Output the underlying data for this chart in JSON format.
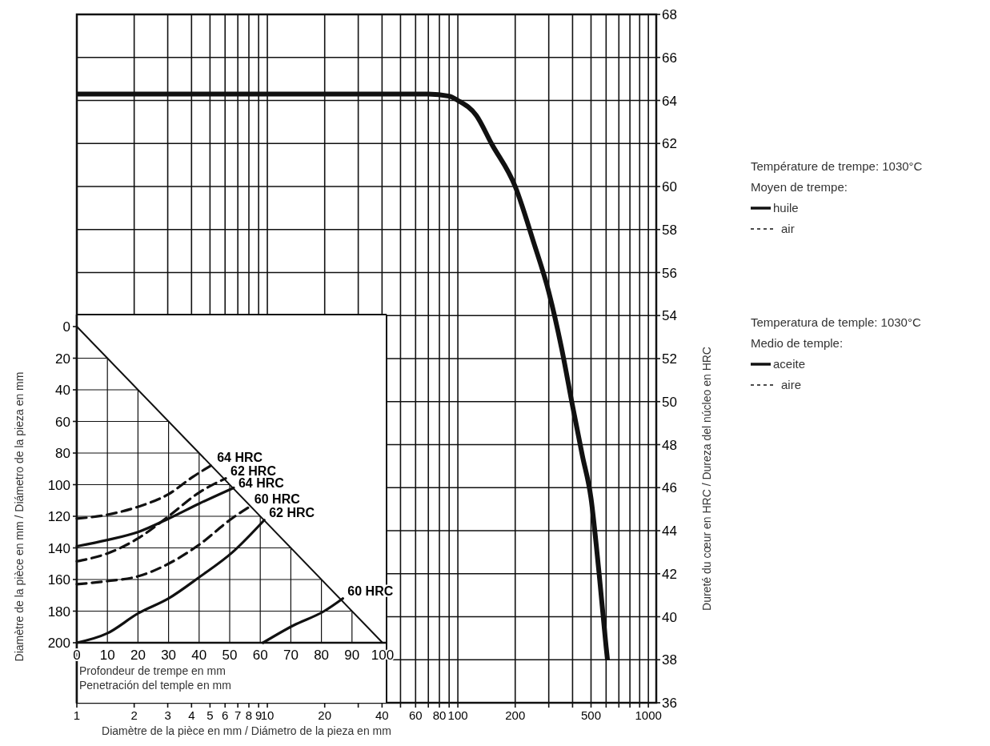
{
  "chart_data": [
    {
      "type": "line",
      "xlabel": "Diamètre de la pièce en mm / Diámetro de la pieza en mm",
      "ylabel": "Dureté du cœur en HRC / Dureza del núcleo en HRC",
      "log": "x",
      "grid": true,
      "xlim": [
        1,
        1100
      ],
      "xticks": [
        1,
        2,
        3,
        4,
        5,
        6,
        7,
        8,
        9,
        10,
        20,
        {
          "value": 30,
          "label": null
        },
        40,
        {
          "value": 50,
          "label": null
        },
        60,
        {
          "value": 70,
          "label": null
        },
        80,
        {
          "value": 90,
          "label": null
        },
        100,
        200,
        {
          "value": 300,
          "label": null
        },
        {
          "value": 400,
          "label": null
        },
        500,
        {
          "value": 600,
          "label": null
        },
        {
          "value": 700,
          "label": null
        },
        {
          "value": 800,
          "label": null
        },
        {
          "value": 900,
          "label": null
        },
        1000
      ],
      "ylim": [
        36,
        68
      ],
      "yticks": [
        36,
        38,
        40,
        42,
        44,
        46,
        48,
        50,
        52,
        54,
        56,
        58,
        60,
        62,
        64,
        66,
        68
      ],
      "series": [
        {
          "color": "#111111",
          "x": [
            1,
            70,
            90,
            100,
            125,
            150,
            200,
            250,
            300,
            350,
            400,
            450,
            500,
            550,
            600,
            610
          ],
          "values": [
            64.3,
            64.3,
            64.2,
            64.0,
            63.3,
            62.0,
            60.0,
            57.4,
            55.1,
            52.5,
            49.8,
            47.5,
            45.5,
            42.1,
            38.6,
            38
          ]
        }
      ]
    },
    {
      "type": "line",
      "xlabel": "Profondeur de trempe en mm\nPenetración del temple en mm",
      "ylabel": "Diamètre de la pièce en mm / Diámetro de la pieza en mm",
      "grid": true,
      "xlim": [
        0,
        100
      ],
      "xticks": [
        0,
        10,
        20,
        30,
        40,
        50,
        60,
        70,
        80,
        90,
        100
      ],
      "ylim": [
        200,
        0
      ],
      "yticks": [
        0,
        20,
        40,
        60,
        80,
        100,
        120,
        140,
        160,
        180,
        200
      ],
      "annotations": [
        "Température de trempe: 1030°C",
        "Moyen de trempe:",
        "huile",
        "air",
        "Temperatura de temple: 1030°C",
        "Medio de temple:",
        "aceite",
        "aire"
      ],
      "series": [
        {
          "color": "#111111",
          "line_style": "solid",
          "x": [
            0,
            100
          ],
          "values": [
            0,
            200
          ]
        },
        {
          "name": "64 HRC",
          "color": "#111111",
          "line_style": "dashed",
          "x": [
            0,
            10,
            20,
            30,
            38,
            44.3
          ],
          "values": [
            121.5,
            119,
            114,
            106,
            95,
            87.4
          ]
        },
        {
          "name": "62 HRC",
          "color": "#111111",
          "line_style": "dashed",
          "x": [
            0,
            10,
            20,
            30,
            40,
            48.7
          ],
          "values": [
            148.5,
            143.5,
            134,
            120,
            105,
            96
          ]
        },
        {
          "name": "64 HRC",
          "color": "#111111",
          "line_style": "solid",
          "x": [
            0,
            10,
            20,
            30,
            40,
            51.3
          ],
          "values": [
            139,
            135,
            130,
            121.5,
            112,
            102
          ]
        },
        {
          "name": "60 HRC",
          "color": "#111111",
          "line_style": "dashed",
          "x": [
            0,
            10,
            20,
            30,
            40,
            51,
            56.5
          ],
          "values": [
            163,
            161,
            158,
            150,
            138,
            121,
            114
          ]
        },
        {
          "name": "62 HRC",
          "color": "#111111",
          "line_style": "solid",
          "x": [
            0,
            10,
            20,
            30,
            40,
            51,
            61.3
          ],
          "values": [
            200,
            194,
            181.5,
            172,
            158.6,
            142.6,
            122.4
          ]
        },
        {
          "name": "60 HRC",
          "color": "#111111",
          "line_style": "solid",
          "x": [
            60.9,
            70.9,
            80.9,
            87
          ],
          "values": [
            200,
            189,
            180,
            172
          ]
        }
      ]
    }
  ]
}
